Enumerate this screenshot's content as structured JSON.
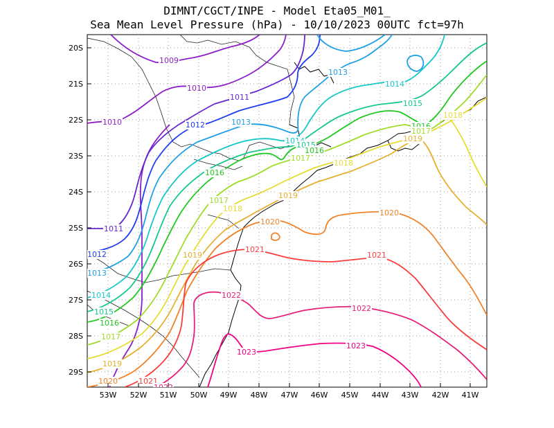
{
  "header": {
    "line1": "DIMNT/CGCT/INPE -  Model Eta05_M01_",
    "line2": "Sea Mean Level Pressure (hPa) - 10/10/2023 00UTC fct=97h"
  },
  "axes": {
    "lat_labels": [
      "20S",
      "21S",
      "22S",
      "23S",
      "24S",
      "25S",
      "26S",
      "27S",
      "28S",
      "29S"
    ],
    "lon_labels": [
      "53W",
      "52W",
      "51W",
      "50W",
      "49W",
      "48W",
      "47W",
      "46W",
      "45W",
      "44W",
      "43W",
      "42W",
      "41W"
    ]
  },
  "contours": [
    {
      "value": "1009",
      "color": "#8c1ec8"
    },
    {
      "value": "1010",
      "color": "#8c1ec8"
    },
    {
      "value": "1011",
      "color": "#6428d2"
    },
    {
      "value": "1012",
      "color": "#1e3cf0"
    },
    {
      "value": "1013",
      "color": "#1ea0e6"
    },
    {
      "value": "1014",
      "color": "#14c8c8"
    },
    {
      "value": "1015",
      "color": "#14c88c"
    },
    {
      "value": "1016",
      "color": "#1ec81e"
    },
    {
      "value": "1017",
      "color": "#a0dc28"
    },
    {
      "value": "1018",
      "color": "#e6dc32"
    },
    {
      "value": "1019",
      "color": "#e6af2d"
    },
    {
      "value": "1020",
      "color": "#f08228"
    },
    {
      "value": "1021",
      "color": "#fa3c3c"
    },
    {
      "value": "1022",
      "color": "#e61e78"
    },
    {
      "value": "1023",
      "color": "#f00082"
    }
  ],
  "contour_labels": [
    {
      "text": "1009",
      "color": "#8c1ec8"
    },
    {
      "text": "1010",
      "color": "#8c1ec8"
    },
    {
      "text": "1010",
      "color": "#8c1ec8"
    },
    {
      "text": "1011",
      "color": "#6428d2"
    },
    {
      "text": "1011",
      "color": "#6428d2"
    },
    {
      "text": "1012",
      "color": "#1e3cf0"
    },
    {
      "text": "1012",
      "color": "#1e3cf0"
    },
    {
      "text": "1013",
      "color": "#1ea0e6"
    },
    {
      "text": "1013",
      "color": "#1ea0e6"
    },
    {
      "text": "1013",
      "color": "#1ea0e6"
    },
    {
      "text": "1014",
      "color": "#14c8c8"
    },
    {
      "text": "1014",
      "color": "#14c8c8"
    },
    {
      "text": "1014",
      "color": "#14c8c8"
    },
    {
      "text": "1015",
      "color": "#14c88c"
    },
    {
      "text": "1015",
      "color": "#14c88c"
    },
    {
      "text": "1015",
      "color": "#14c88c"
    },
    {
      "text": "1016",
      "color": "#1ec81e"
    },
    {
      "text": "1016",
      "color": "#1ec81e"
    },
    {
      "text": "1016",
      "color": "#1ec81e"
    },
    {
      "text": "1016",
      "color": "#1ec81e"
    },
    {
      "text": "1017",
      "color": "#a0dc28"
    },
    {
      "text": "1017",
      "color": "#a0dc28"
    },
    {
      "text": "1017",
      "color": "#a0dc28"
    },
    {
      "text": "1017",
      "color": "#a0dc28"
    },
    {
      "text": "1018",
      "color": "#e6dc32"
    },
    {
      "text": "1018",
      "color": "#e6dc32"
    },
    {
      "text": "1018",
      "color": "#e6dc32"
    },
    {
      "text": "1019",
      "color": "#e6af2d"
    },
    {
      "text": "1019",
      "color": "#e6af2d"
    },
    {
      "text": "1019",
      "color": "#e6af2d"
    },
    {
      "text": "1019",
      "color": "#e6af2d"
    },
    {
      "text": "1020",
      "color": "#f08228"
    },
    {
      "text": "1020",
      "color": "#f08228"
    },
    {
      "text": "1020",
      "color": "#f08228"
    },
    {
      "text": "1021",
      "color": "#fa3c3c"
    },
    {
      "text": "1021",
      "color": "#fa3c3c"
    },
    {
      "text": "1021",
      "color": "#fa3c3c"
    },
    {
      "text": "1022",
      "color": "#e61e78"
    },
    {
      "text": "1022",
      "color": "#e61e78"
    },
    {
      "text": "1022",
      "color": "#e61e78"
    },
    {
      "text": "1023",
      "color": "#f00082"
    },
    {
      "text": "1023",
      "color": "#f00082"
    }
  ]
}
